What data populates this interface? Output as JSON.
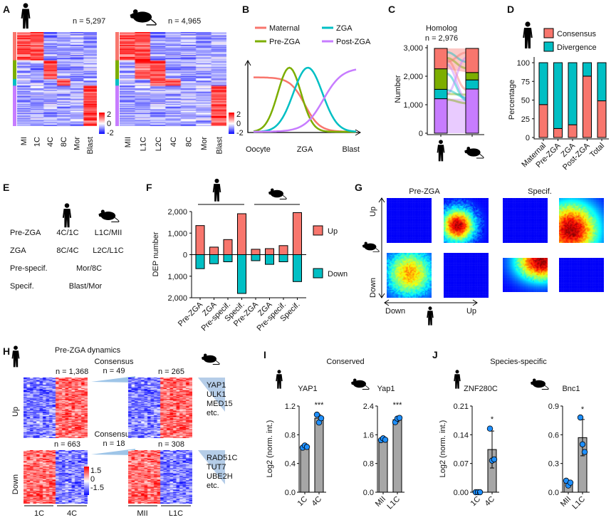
{
  "panel_labels": [
    "A",
    "B",
    "C",
    "D",
    "E",
    "F",
    "G",
    "H",
    "I",
    "J"
  ],
  "colors": {
    "maternal": "#f8766d",
    "pre_zga": "#7cae00",
    "zga": "#00bfc4",
    "post_zga": "#c77cff",
    "up": "#f8766d",
    "down": "#00bfc4",
    "bar_gray": "#a6a6a6",
    "dot": "#1e8fff"
  },
  "icons": [
    "human-icon",
    "mouse-icon"
  ],
  "A": {
    "human_n": "n = 5,297",
    "mouse_n": "n = 4,965",
    "human_stages": [
      "MI",
      "1C",
      "4C",
      "8C",
      "Mor",
      "Blast"
    ],
    "mouse_stages": [
      "MII",
      "L1C",
      "L2C",
      "4C",
      "8C",
      "Mor",
      "Blast"
    ],
    "colorbar": [
      "2",
      "0",
      "-2"
    ]
  },
  "chart_data": [
    {
      "panel": "B",
      "type": "line",
      "legend": [
        "Maternal",
        "ZGA",
        "Pre-ZGA",
        "Post-ZGA"
      ],
      "x_ticks": [
        "Oocyte",
        "ZGA",
        "Blast"
      ]
    },
    {
      "panel": "C",
      "type": "bar",
      "stacked": true,
      "title": "Homolog",
      "subtitle": "n = 2,976",
      "ylabel": "Number",
      "yticks": [
        "0",
        "1,000",
        "2,000",
        "3,000"
      ],
      "ylim": [
        0,
        3000
      ],
      "categories": [
        "human",
        "mouse"
      ],
      "series": [
        {
          "key": "post_zga",
          "values": [
            1210,
            1550
          ]
        },
        {
          "key": "zga",
          "values": [
            330,
            320
          ]
        },
        {
          "key": "pre_zga",
          "values": [
            720,
            260
          ]
        },
        {
          "key": "maternal",
          "values": [
            716,
            846
          ]
        }
      ]
    },
    {
      "panel": "D",
      "type": "bar",
      "stacked": true,
      "ylabel": "Percentage",
      "yticks": [
        "0",
        "25",
        "50",
        "75",
        "100"
      ],
      "ylim": [
        0,
        100
      ],
      "categories": [
        "Maternal",
        "Pre-ZGA",
        "ZGA",
        "Post-ZGA",
        "Total"
      ],
      "series": [
        {
          "name": "Consensus",
          "values": [
            44,
            12,
            17,
            82,
            49
          ]
        },
        {
          "name": "Divergence",
          "values": [
            56,
            88,
            83,
            18,
            51
          ]
        }
      ]
    },
    {
      "panel": "F",
      "type": "bar",
      "ylabel": "DEP number",
      "yticks": [
        "2,000",
        "1,000",
        "0",
        "1,000",
        "2,000"
      ],
      "ylim": [
        -2000,
        2000
      ],
      "categories": [
        "Pre-ZGA",
        "ZGA",
        "Pre-specif.",
        "Specif.",
        "Pre-ZGA",
        "ZGA",
        "Pre-specif.",
        "Specif."
      ],
      "series": [
        {
          "name": "Up",
          "values": [
            1350,
            350,
            700,
            1900,
            250,
            280,
            420,
            1950
          ]
        },
        {
          "name": "Down",
          "values": [
            -650,
            -420,
            -330,
            -1800,
            -280,
            -450,
            -330,
            -1250
          ]
        }
      ]
    },
    {
      "panel": "I1",
      "type": "bar",
      "gene": "YAP1",
      "ylabel": "Log2 (norm. int.)",
      "yticks": [
        "0.0",
        "0.4",
        "0.8",
        "1.2"
      ],
      "ylim": [
        0,
        1.2
      ],
      "categories": [
        "1C",
        "4C"
      ],
      "values": [
        0.63,
        1.03
      ],
      "points": [
        [
          0.62,
          0.65,
          0.63
        ],
        [
          1.08,
          0.97,
          1.03
        ]
      ],
      "err": [
        0.02,
        0.05
      ],
      "sig": "***"
    },
    {
      "panel": "I2",
      "type": "bar",
      "gene": "Yap1",
      "yticks": [
        "0.0",
        "0.8",
        "1.6",
        "2.4"
      ],
      "ylim": [
        0,
        2.4
      ],
      "categories": [
        "MII",
        "L1C"
      ],
      "values": [
        1.47,
        2.02
      ],
      "points": [
        [
          1.45,
          1.5,
          1.46
        ],
        [
          1.95,
          2.05,
          2.07
        ]
      ],
      "err": [
        0.03,
        0.06
      ],
      "sig": "***"
    },
    {
      "panel": "J1",
      "type": "bar",
      "gene": "ZNF280C",
      "ylabel": "Log2 (norm. int.)",
      "yticks": [
        "0.00",
        "0.07",
        "0.14",
        "0.21"
      ],
      "ylim": [
        0,
        0.21
      ],
      "categories": [
        "1C",
        "4C"
      ],
      "values": [
        0,
        0.104
      ],
      "points": [
        [
          0,
          0,
          0
        ],
        [
          0.155,
          0.077,
          0.08
        ]
      ],
      "err": [
        0,
        0.045
      ],
      "sig": "*"
    },
    {
      "panel": "J2",
      "type": "bar",
      "gene": "Bnc1",
      "yticks": [
        "0.0",
        "0.3",
        "0.6",
        "0.9"
      ],
      "ylim": [
        0,
        0.9
      ],
      "categories": [
        "MII",
        "L1C"
      ],
      "values": [
        0.1,
        0.57
      ],
      "points": [
        [
          0.12,
          0.07,
          0.1
        ],
        [
          0.78,
          0.5,
          0.42
        ]
      ],
      "err": [
        0.025,
        0.19
      ],
      "sig": "*"
    }
  ],
  "E": {
    "rows": [
      {
        "label": "Pre-ZGA",
        "human": "4C/1C",
        "mouse": "L1C/MII"
      },
      {
        "label": "ZGA",
        "human": "8C/4C",
        "mouse": "L2C/L1C"
      },
      {
        "label": "Pre-specif.",
        "human": "Mor/8C",
        "mouse": ""
      },
      {
        "label": "Specif.",
        "human": "Blast/Mor",
        "mouse": ""
      }
    ]
  },
  "F": {
    "legend": [
      "Up",
      "Down"
    ]
  },
  "G": {
    "titles": [
      "Pre-ZGA",
      "Specif."
    ],
    "up": "Up",
    "down": "Down",
    "x_down": "Down",
    "x_up": "Up"
  },
  "H": {
    "title": "Pre-ZGA dynamics",
    "up_human_n": "n = 1,368",
    "up_mouse_n": "n = 265",
    "down_human_n": "n = 663",
    "down_mouse_n": "n = 308",
    "up_consensus": "Consensus",
    "up_consensus_n": "n = 49",
    "down_consensus": "Consensus",
    "down_consensus_n": "n = 18",
    "up_genes": [
      "YAP1",
      "ULK1",
      "MED15",
      "etc."
    ],
    "down_genes": [
      "RAD51C",
      "TUT7",
      "UBE2H",
      "etc."
    ],
    "row_up": "Up",
    "row_down": "Down",
    "colorbar": [
      "1.5",
      "0",
      "-1.5"
    ],
    "x_labels": [
      "1C",
      "4C",
      "MII",
      "L1C"
    ]
  },
  "I": {
    "title": "Conserved"
  },
  "J": {
    "title": "Species-specific"
  }
}
